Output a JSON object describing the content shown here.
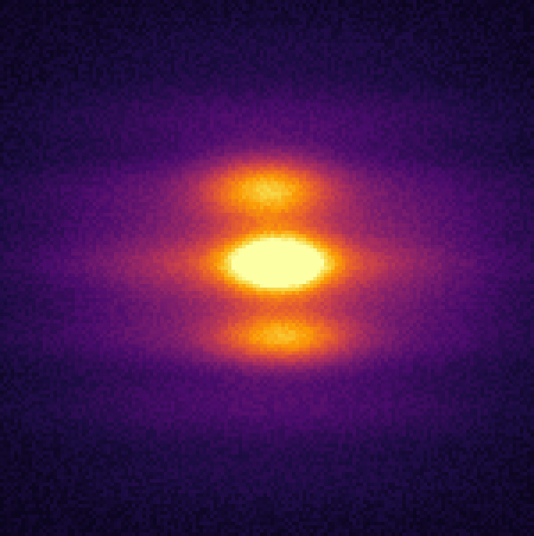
{
  "image": {
    "kind": "false-color intensity map",
    "colormap": "inferno",
    "colormap_stops": [
      "#000004",
      "#1b0c41",
      "#4a0c6b",
      "#781c6d",
      "#a52c60",
      "#cf4446",
      "#ed6925",
      "#fb9b06",
      "#f7d13d",
      "#fcffa4"
    ],
    "background_color": "#0a0512",
    "features": [
      {
        "name": "central-bright-spot",
        "relative_intensity": 1.0
      },
      {
        "name": "upper-fringe-lobe",
        "relative_intensity": 0.62
      },
      {
        "name": "lower-fringe-lobe",
        "relative_intensity": 0.6
      },
      {
        "name": "diffuse-halo",
        "relative_intensity": 0.3
      }
    ]
  }
}
